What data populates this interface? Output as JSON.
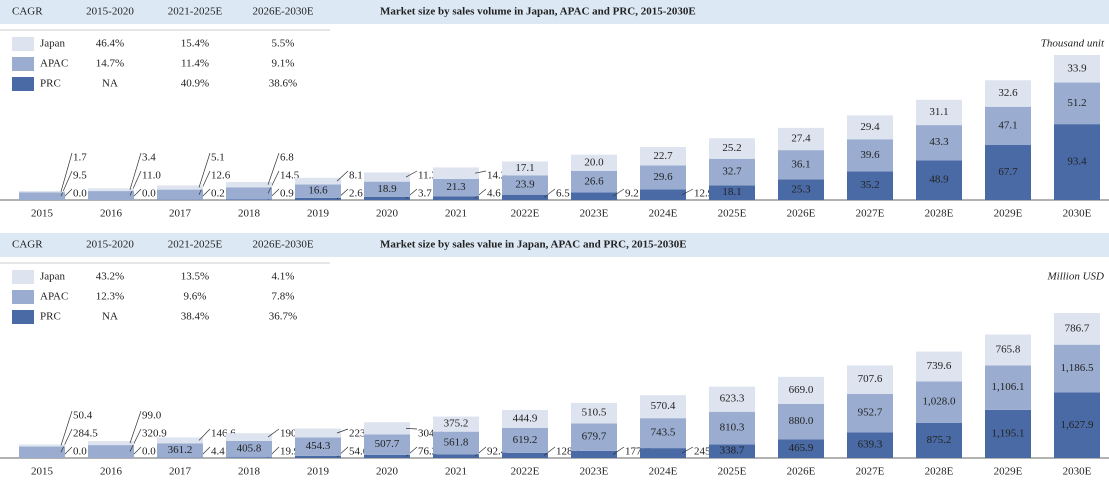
{
  "chart_data": [
    {
      "type": "bar",
      "stacked": true,
      "title": "Market size by sales volume in Japan, APAC and PRC, 2015-2030E",
      "unit_label": "Thousand unit",
      "cagr": {
        "header": [
          "CAGR",
          "2015-2020",
          "2021-2025E",
          "2026E-2030E"
        ],
        "rows": [
          [
            "46.4%",
            "15.4%",
            "5.5%"
          ],
          [
            "14.7%",
            "11.4%",
            "9.1%"
          ],
          [
            "NA",
            "40.9%",
            "38.6%"
          ]
        ]
      },
      "categories": [
        "2015",
        "2016",
        "2017",
        "2018",
        "2019",
        "2020",
        "2021",
        "2022E",
        "2023E",
        "2024E",
        "2025E",
        "2026E",
        "2027E",
        "2028E",
        "2029E",
        "2030E"
      ],
      "series": [
        {
          "name": "Japan",
          "color": "#dde4ef",
          "values": [
            1.7,
            3.4,
            5.1,
            6.8,
            8.1,
            11.3,
            14.2,
            17.1,
            20.0,
            22.7,
            25.2,
            27.4,
            29.4,
            31.1,
            32.6,
            33.9
          ],
          "value_labels": [
            "1.7",
            "3.4",
            "5.1",
            "6.8",
            "8.1",
            "11.3",
            "14.2",
            "17.1",
            "20.0",
            "22.7",
            "25.2",
            "27.4",
            "29.4",
            "31.1",
            "32.6",
            "33.9"
          ]
        },
        {
          "name": "APAC",
          "color": "#9aadd0",
          "values": [
            9.5,
            11.0,
            12.6,
            14.5,
            16.6,
            18.9,
            21.3,
            23.9,
            26.6,
            29.6,
            32.7,
            36.1,
            39.6,
            43.3,
            47.1,
            51.2
          ],
          "value_labels": [
            "9.5",
            "11.0",
            "12.6",
            "14.5",
            "16.6",
            "18.9",
            "21.3",
            "23.9",
            "26.6",
            "29.6",
            "32.7",
            "36.1",
            "39.6",
            "43.3",
            "47.1",
            "51.2"
          ]
        },
        {
          "name": "PRC",
          "color": "#4a6aa5",
          "values": [
            0.0,
            0.0,
            0.2,
            0.9,
            2.6,
            3.7,
            4.6,
            6.5,
            9.2,
            12.9,
            18.1,
            25.3,
            35.2,
            48.9,
            67.7,
            93.4
          ],
          "value_labels": [
            "0.0",
            "0.0",
            "0.2",
            "0.9",
            "2.6",
            "3.7",
            "4.6",
            "6.5",
            "9.2",
            "12.9",
            "18.1",
            "25.3",
            "35.2",
            "48.9",
            "67.7",
            "93.4"
          ]
        }
      ]
    },
    {
      "type": "bar",
      "stacked": true,
      "title": "Market size by sales value in Japan, APAC and PRC, 2015-2030E",
      "unit_label": "Million USD",
      "cagr": {
        "header": [
          "CAGR",
          "2015-2020",
          "2021-2025E",
          "2026E-2030E"
        ],
        "rows": [
          [
            "43.2%",
            "13.5%",
            "4.1%"
          ],
          [
            "12.3%",
            "9.6%",
            "7.8%"
          ],
          [
            "NA",
            "38.4%",
            "36.7%"
          ]
        ]
      },
      "categories": [
        "2015",
        "2016",
        "2017",
        "2018",
        "2019",
        "2020",
        "2021",
        "2022E",
        "2023E",
        "2024E",
        "2025E",
        "2026E",
        "2027E",
        "2028E",
        "2029E",
        "2030E"
      ],
      "series": [
        {
          "name": "Japan",
          "color": "#dde4ef",
          "values": [
            50.4,
            99.0,
            146.6,
            190.1,
            223.6,
            304.2,
            375.2,
            444.9,
            510.5,
            570.4,
            623.3,
            669.0,
            707.6,
            739.6,
            765.8,
            786.7
          ],
          "value_labels": [
            "50.4",
            "99.0",
            "146.6",
            "190.1",
            "223.6",
            "304.2",
            "375.2",
            "444.9",
            "510.5",
            "570.4",
            "623.3",
            "669.0",
            "707.6",
            "739.6",
            "765.8",
            "786.7"
          ]
        },
        {
          "name": "APAC",
          "color": "#9aadd0",
          "values": [
            284.5,
            320.9,
            361.2,
            405.8,
            454.3,
            507.7,
            561.8,
            619.2,
            679.7,
            743.5,
            810.3,
            880.0,
            952.7,
            1028.0,
            1106.1,
            1186.5
          ],
          "value_labels": [
            "284.5",
            "320.9",
            "361.2",
            "405.8",
            "454.3",
            "507.7",
            "561.8",
            "619.2",
            "679.7",
            "743.5",
            "810.3",
            "880.0",
            "952.7",
            "1,028.0",
            "1,106.1",
            "1,186.5"
          ]
        },
        {
          "name": "PRC",
          "color": "#4a6aa5",
          "values": [
            0.0,
            0.0,
            4.4,
            19.9,
            54.6,
            76.2,
            92.4,
            128.3,
            177.7,
            245.7,
            338.7,
            465.9,
            639.3,
            875.2,
            1195.1,
            1627.9
          ],
          "value_labels": [
            "0.0",
            "0.0",
            "4.4",
            "19.9",
            "54.6",
            "76.2",
            "92.4",
            "128.3",
            "177.7",
            "245.7",
            "338.7",
            "465.9",
            "639.3",
            "875.2",
            "1,195.1",
            "1,627.9"
          ]
        }
      ]
    }
  ]
}
